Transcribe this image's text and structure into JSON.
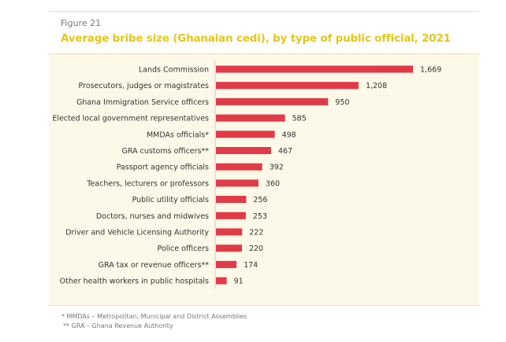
{
  "figure_label": "Figure 21",
  "chart_data": {
    "type": "bar",
    "orientation": "horizontal",
    "title": "Average bribe size (Ghanaian cedi), by type of public official, 2021",
    "categories": [
      "Lands Commission",
      "Prosecutors, judges or magistrates",
      "Ghana Immigration Service officers",
      "Elected local government representatives",
      "MMDAs officials*",
      "GRA customs officers**",
      "Passport agency officials",
      "Teachers, lecturers or professors",
      "Public utility officials",
      "Doctors, nurses and midwives",
      "Driver and Vehicle Licensing Authority",
      "Police officers",
      "GRA tax or revenue officers**",
      "Other health workers in public hospitals"
    ],
    "values": [
      1669,
      1208,
      950,
      585,
      498,
      467,
      392,
      360,
      256,
      253,
      222,
      220,
      174,
      91
    ],
    "value_labels": [
      "1,669",
      "1,208",
      "950",
      "585",
      "498",
      "467",
      "392",
      "360",
      "256",
      "253",
      "222",
      "220",
      "174",
      "91"
    ],
    "xlim": [
      0,
      1669
    ],
    "grid": false,
    "bar_color": "#e23a46"
  },
  "footnotes": [
    "* MMDAs – Metropolitan, Municipal and District Assemblies",
    "** GRA – Ghana Revenue Authority"
  ]
}
